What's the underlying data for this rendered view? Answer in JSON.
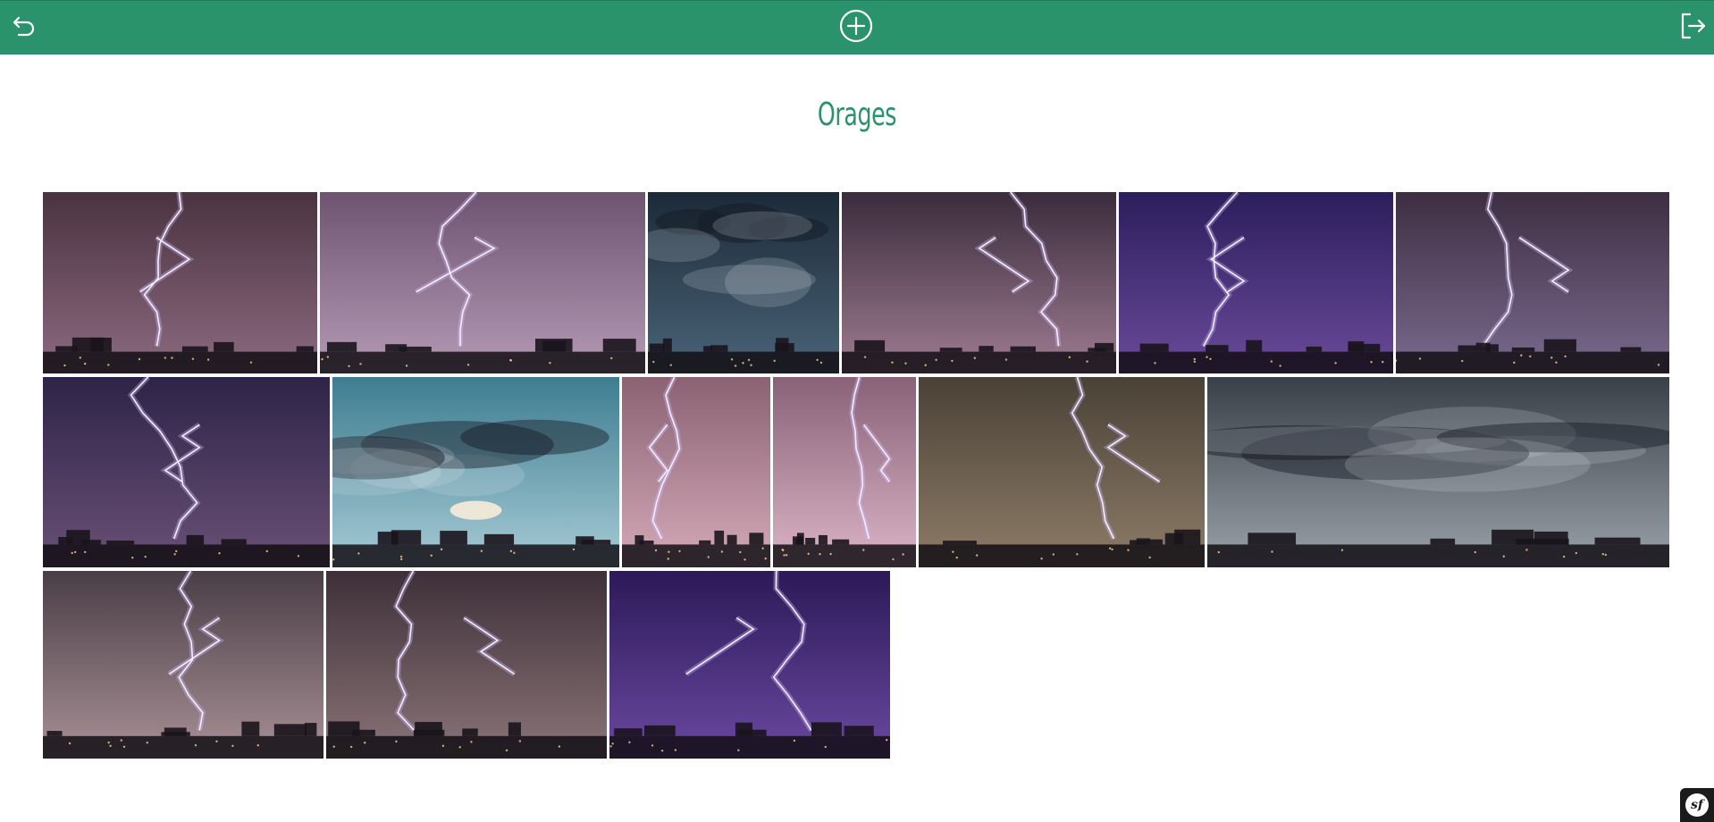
{
  "header": {
    "back_icon": "undo-arrow-icon",
    "add_icon": "plus-circle-icon",
    "logout_icon": "logout-icon"
  },
  "page": {
    "title": "Orages"
  },
  "colors": {
    "header_bg": "#2a936c",
    "title": "#2a936c"
  },
  "gallery": {
    "photos": [
      {
        "subject": "lightning",
        "palette": [
          "#4a3340",
          "#8c6a80"
        ]
      },
      {
        "subject": "lightning",
        "palette": [
          "#6e5470",
          "#b59ab6"
        ]
      },
      {
        "subject": "storm-cloud",
        "palette": [
          "#1c2a38",
          "#4a6478"
        ]
      },
      {
        "subject": "lightning",
        "palette": [
          "#3a2c3c",
          "#a07c92"
        ]
      },
      {
        "subject": "lightning",
        "palette": [
          "#2c1e5c",
          "#6a4a9a"
        ]
      },
      {
        "subject": "lightning",
        "palette": [
          "#3e2e42",
          "#7a6a8e"
        ]
      },
      {
        "subject": "lightning",
        "palette": [
          "#2e2448",
          "#6a5076"
        ]
      },
      {
        "subject": "supercell",
        "palette": [
          "#3e7d90",
          "#a7cbd6"
        ]
      },
      {
        "subject": "lightning",
        "palette": [
          "#8a6272",
          "#d4aab8"
        ]
      },
      {
        "subject": "lightning",
        "palette": [
          "#8a6278",
          "#dcb4c6"
        ]
      },
      {
        "subject": "lightning",
        "palette": [
          "#4a4236",
          "#8e7c68"
        ]
      },
      {
        "subject": "shelf-cloud",
        "palette": [
          "#3a4048",
          "#9aa2aa"
        ]
      },
      {
        "subject": "lightning",
        "palette": [
          "#4a3e46",
          "#a89096"
        ]
      },
      {
        "subject": "lightning",
        "palette": [
          "#3e3038",
          "#8a7478"
        ]
      },
      {
        "subject": "lightning",
        "palette": [
          "#2c1a58",
          "#6a48a0"
        ]
      }
    ]
  },
  "footer": {
    "badge_text": "sf"
  }
}
